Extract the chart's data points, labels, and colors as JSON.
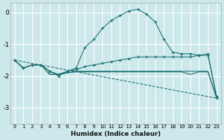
{
  "xlabel": "Humidex (Indice chaleur)",
  "bg_color": "#cce8ea",
  "grid_color": "#ffffff",
  "line_color": "#1a7070",
  "xlim": [
    -0.5,
    23.5
  ],
  "ylim": [
    -3.5,
    0.3
  ],
  "yticks": [
    0,
    -1,
    -2,
    -3
  ],
  "xticks": [
    0,
    1,
    2,
    3,
    4,
    5,
    6,
    7,
    8,
    9,
    10,
    11,
    12,
    13,
    14,
    15,
    16,
    17,
    18,
    19,
    20,
    21,
    22,
    23
  ],
  "series": [
    {
      "x": [
        0,
        1,
        2,
        3,
        4,
        5,
        6,
        7,
        8,
        9,
        10,
        11,
        12,
        13,
        14,
        15,
        16,
        17,
        18,
        19,
        20,
        21,
        22,
        23
      ],
      "y": [
        -1.5,
        -1.75,
        -1.65,
        -1.65,
        -1.85,
        -2.0,
        -1.85,
        -1.75,
        -1.1,
        -0.85,
        -0.5,
        -0.25,
        -0.1,
        0.05,
        0.1,
        -0.05,
        -0.3,
        -0.85,
        -1.25,
        -1.3,
        -1.3,
        -1.35,
        -1.3,
        -2.7
      ],
      "marker": "+"
    },
    {
      "x": [
        0,
        1,
        2,
        3,
        4,
        5,
        6,
        7,
        8,
        9,
        10,
        11,
        12,
        13,
        14,
        15,
        16,
        17,
        18,
        19,
        20,
        21,
        22,
        23
      ],
      "y": [
        -1.5,
        -1.75,
        -1.65,
        -1.65,
        -1.85,
        -1.95,
        -1.85,
        -1.8,
        -1.7,
        -1.65,
        -1.6,
        -1.55,
        -1.5,
        -1.45,
        -1.4,
        -1.4,
        -1.4,
        -1.4,
        -1.4,
        -1.4,
        -1.4,
        -1.35,
        -1.35,
        -2.65
      ],
      "marker": "+"
    },
    {
      "x": [
        0,
        1,
        2,
        3,
        4,
        5,
        6,
        7,
        8,
        9,
        10,
        11,
        12,
        13,
        14,
        15,
        16,
        17,
        18,
        19,
        20,
        21,
        22,
        23
      ],
      "y": [
        -1.5,
        -1.75,
        -1.65,
        -1.65,
        -1.95,
        -1.95,
        -1.9,
        -1.85,
        -1.85,
        -1.85,
        -1.85,
        -1.85,
        -1.85,
        -1.85,
        -1.85,
        -1.85,
        -1.85,
        -1.85,
        -1.85,
        -1.85,
        -1.85,
        -1.85,
        -1.85,
        -2.7
      ],
      "marker": null
    },
    {
      "x": [
        0,
        1,
        2,
        3,
        4,
        5,
        6,
        7,
        8,
        9,
        10,
        11,
        12,
        13,
        14,
        15,
        16,
        17,
        18,
        19,
        20,
        21,
        22,
        23
      ],
      "y": [
        -1.5,
        -1.75,
        -1.65,
        -1.65,
        -1.95,
        -1.95,
        -1.9,
        -1.87,
        -1.87,
        -1.87,
        -1.87,
        -1.87,
        -1.87,
        -1.87,
        -1.87,
        -1.87,
        -1.87,
        -1.87,
        -1.87,
        -1.87,
        -1.95,
        -1.87,
        -1.87,
        -2.7
      ],
      "marker": null
    },
    {
      "x": [
        0,
        23
      ],
      "y": [
        -1.5,
        -2.7
      ],
      "marker": null,
      "dashed": true
    }
  ]
}
